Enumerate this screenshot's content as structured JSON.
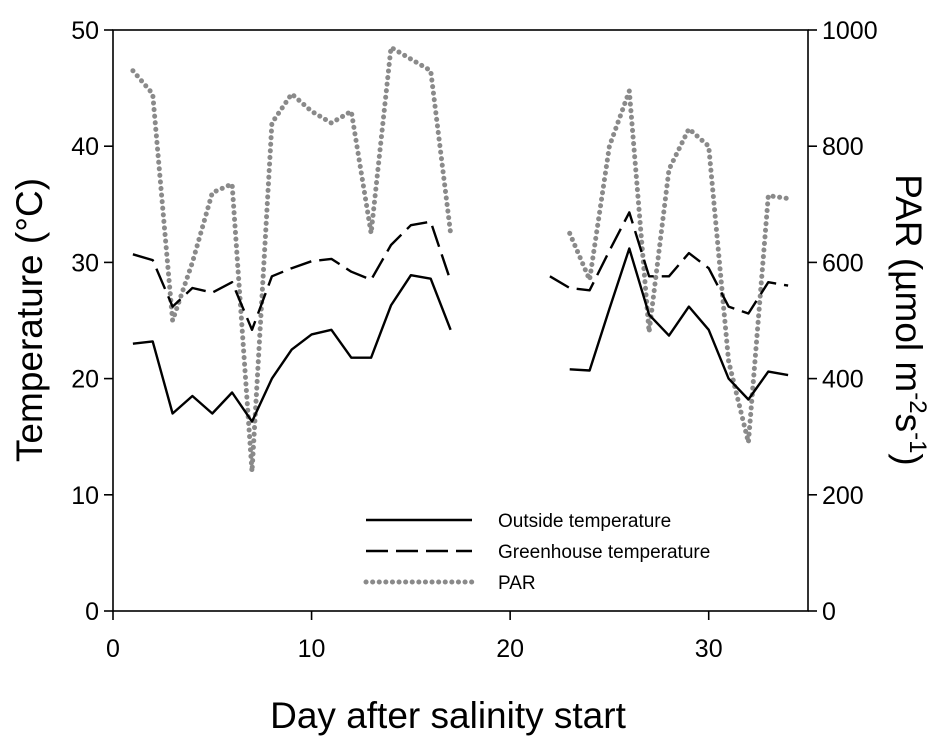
{
  "chart_data": {
    "type": "line",
    "xlabel": "Day after salinity start",
    "ylabel_left": "Temperature (°C)",
    "ylabel_right": {
      "base": "PAR (µmol m",
      "sup1": "-2",
      "mid": "s",
      "sup2": "-1",
      "end": ")"
    },
    "xlim": [
      0,
      35
    ],
    "ylim_left": [
      0,
      50
    ],
    "ylim_right": [
      0,
      1000
    ],
    "x_ticks": [
      "0",
      "10",
      "20",
      "30"
    ],
    "y_left_ticks": [
      "0",
      "10",
      "20",
      "30",
      "40",
      "50"
    ],
    "y_right_ticks": [
      "0",
      "200",
      "400",
      "600",
      "800",
      "1000"
    ],
    "grid": false,
    "legend_position": "bottom-right",
    "series": [
      {
        "name": "Outside temperature",
        "axis": "left",
        "style": "solid",
        "color": "#000000",
        "segments": [
          [
            [
              1,
              23.0
            ],
            [
              2,
              23.2
            ],
            [
              3,
              17.0
            ],
            [
              4,
              18.5
            ],
            [
              5,
              17.0
            ],
            [
              6,
              18.8
            ],
            [
              7,
              16.3
            ],
            [
              8,
              20.0
            ],
            [
              9,
              22.5
            ],
            [
              10,
              23.8
            ],
            [
              11,
              24.2
            ],
            [
              12,
              21.8
            ],
            [
              13,
              21.8
            ],
            [
              14,
              26.3
            ],
            [
              15,
              28.9
            ],
            [
              16,
              28.6
            ],
            [
              17,
              24.2
            ]
          ],
          [
            [
              23,
              20.8
            ],
            [
              24,
              20.7
            ],
            [
              25,
              26.0
            ],
            [
              26,
              31.2
            ],
            [
              27,
              25.5
            ],
            [
              28,
              23.7
            ],
            [
              29,
              26.2
            ],
            [
              30,
              24.2
            ],
            [
              31,
              20.0
            ],
            [
              32,
              18.2
            ],
            [
              33,
              20.6
            ],
            [
              34,
              20.3
            ]
          ]
        ]
      },
      {
        "name": "Greenhouse temperature",
        "axis": "left",
        "style": "dashed",
        "color": "#000000",
        "segments": [
          [
            [
              1,
              30.7
            ],
            [
              2,
              30.2
            ],
            [
              3,
              26.2
            ],
            [
              4,
              27.8
            ],
            [
              5,
              27.4
            ],
            [
              6,
              28.3
            ],
            [
              7,
              24.2
            ],
            [
              8,
              28.8
            ],
            [
              9,
              29.5
            ],
            [
              10,
              30.1
            ],
            [
              11,
              30.3
            ],
            [
              12,
              29.2
            ],
            [
              13,
              28.5
            ],
            [
              14,
              31.5
            ],
            [
              15,
              33.2
            ],
            [
              16,
              33.5
            ],
            [
              17,
              28.4
            ]
          ],
          [
            [
              22,
              28.8
            ],
            [
              23,
              27.8
            ],
            [
              24,
              27.6
            ],
            [
              25,
              31.0
            ],
            [
              26,
              34.3
            ],
            [
              27,
              28.8
            ],
            [
              28,
              28.8
            ],
            [
              29,
              30.8
            ],
            [
              30,
              29.5
            ],
            [
              31,
              26.2
            ],
            [
              32,
              25.6
            ],
            [
              33,
              28.3
            ],
            [
              34,
              28.0
            ]
          ]
        ]
      },
      {
        "name": "PAR",
        "axis": "right",
        "style": "dotted",
        "color": "#8a8a8a",
        "segments": [
          [
            [
              1,
              930
            ],
            [
              2,
              890
            ],
            [
              3,
              500
            ],
            [
              4,
              600
            ],
            [
              5,
              720
            ],
            [
              6,
              735
            ],
            [
              7,
              240
            ],
            [
              8,
              840
            ],
            [
              9,
              890
            ],
            [
              10,
              860
            ],
            [
              11,
              840
            ],
            [
              12,
              860
            ],
            [
              13,
              650
            ],
            [
              14,
              970
            ],
            [
              15,
              950
            ],
            [
              16,
              930
            ],
            [
              17,
              650
            ]
          ],
          [
            [
              23,
              650
            ],
            [
              24,
              570
            ],
            [
              25,
              800
            ],
            [
              26,
              895
            ],
            [
              27,
              480
            ],
            [
              28,
              760
            ],
            [
              29,
              830
            ],
            [
              30,
              800
            ],
            [
              31,
              430
            ],
            [
              32,
              290
            ],
            [
              33,
              715
            ],
            [
              34,
              710
            ]
          ]
        ]
      }
    ]
  }
}
